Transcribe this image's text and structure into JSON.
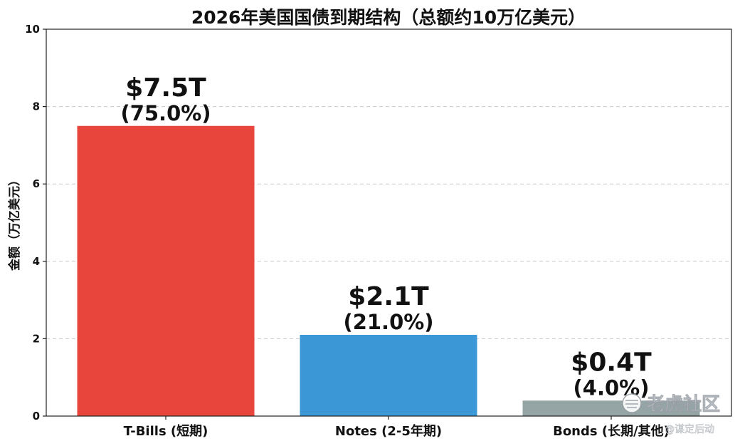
{
  "chart_data": {
    "type": "bar",
    "title": "2026年美国国债到期结构（总额约10万亿美元）",
    "xlabel": "",
    "ylabel": "金额（万亿美元）",
    "ylim": [
      0,
      10
    ],
    "yticks": [
      0,
      2,
      4,
      6,
      8,
      10
    ],
    "grid": true,
    "categories": [
      "T-Bills (短期)",
      "Notes (2-5年期)",
      "Bonds (长期/其他)"
    ],
    "values": [
      7.5,
      2.1,
      0.4
    ],
    "value_labels": [
      "$7.5T",
      "$2.1T",
      "$0.4T"
    ],
    "percent_labels": [
      "(75.0%)",
      "(21.0%)",
      "(4.0%)"
    ],
    "colors": [
      "#e8453c",
      "#3b97d6",
      "#95a5a6"
    ]
  },
  "watermark": {
    "brand": "老虎社区",
    "sub": "@谋定后动"
  }
}
